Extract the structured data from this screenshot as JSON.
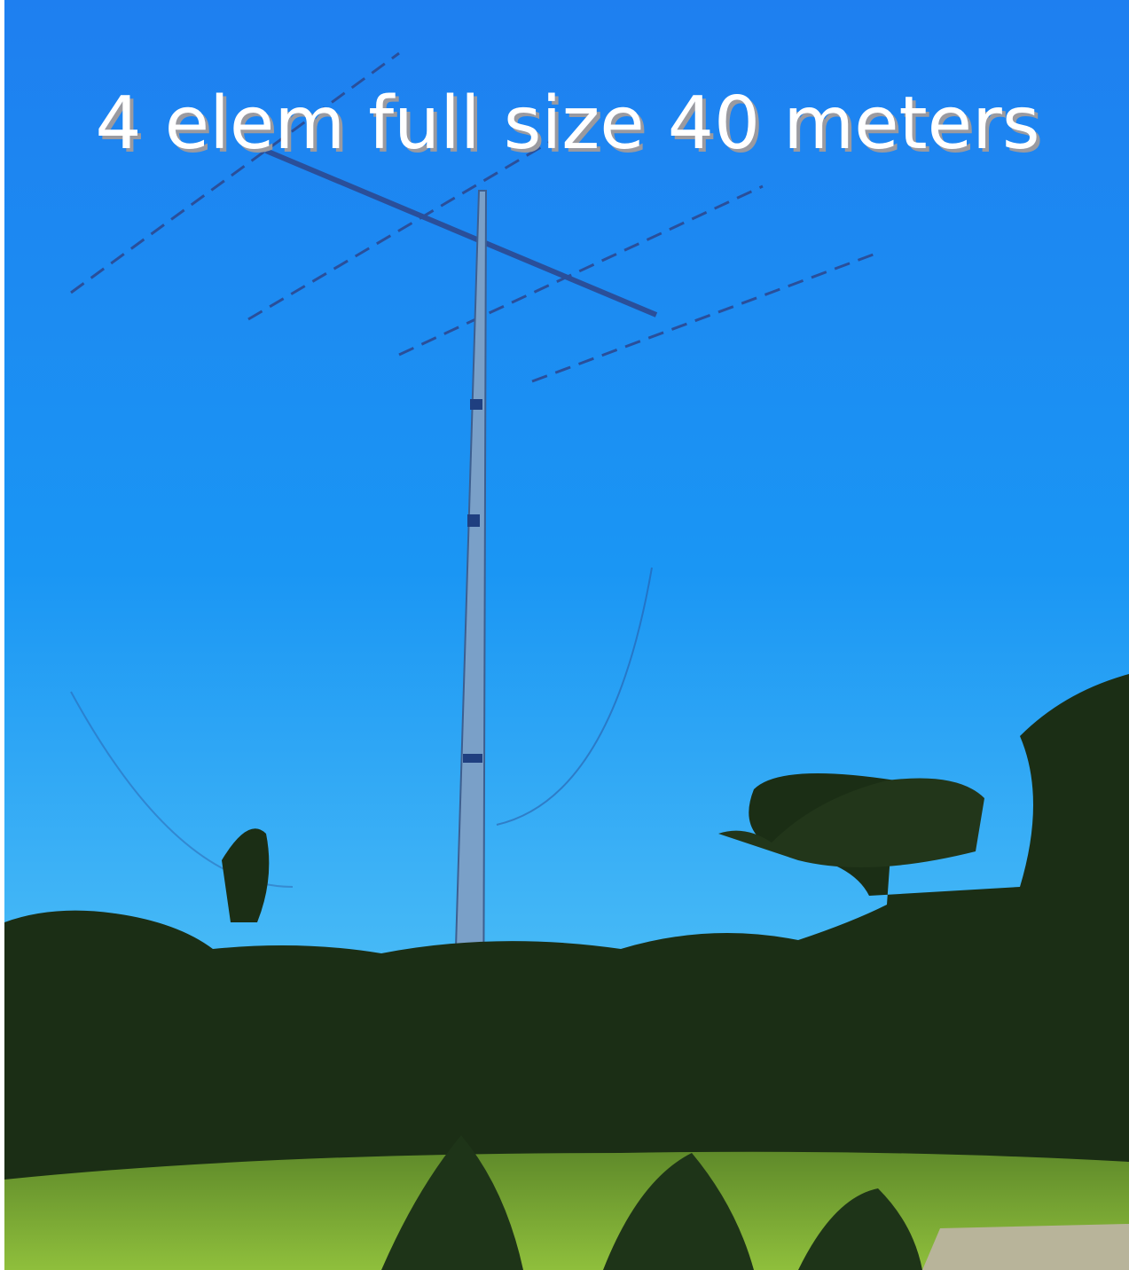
{
  "caption": "4 elem full size 40 meters"
}
